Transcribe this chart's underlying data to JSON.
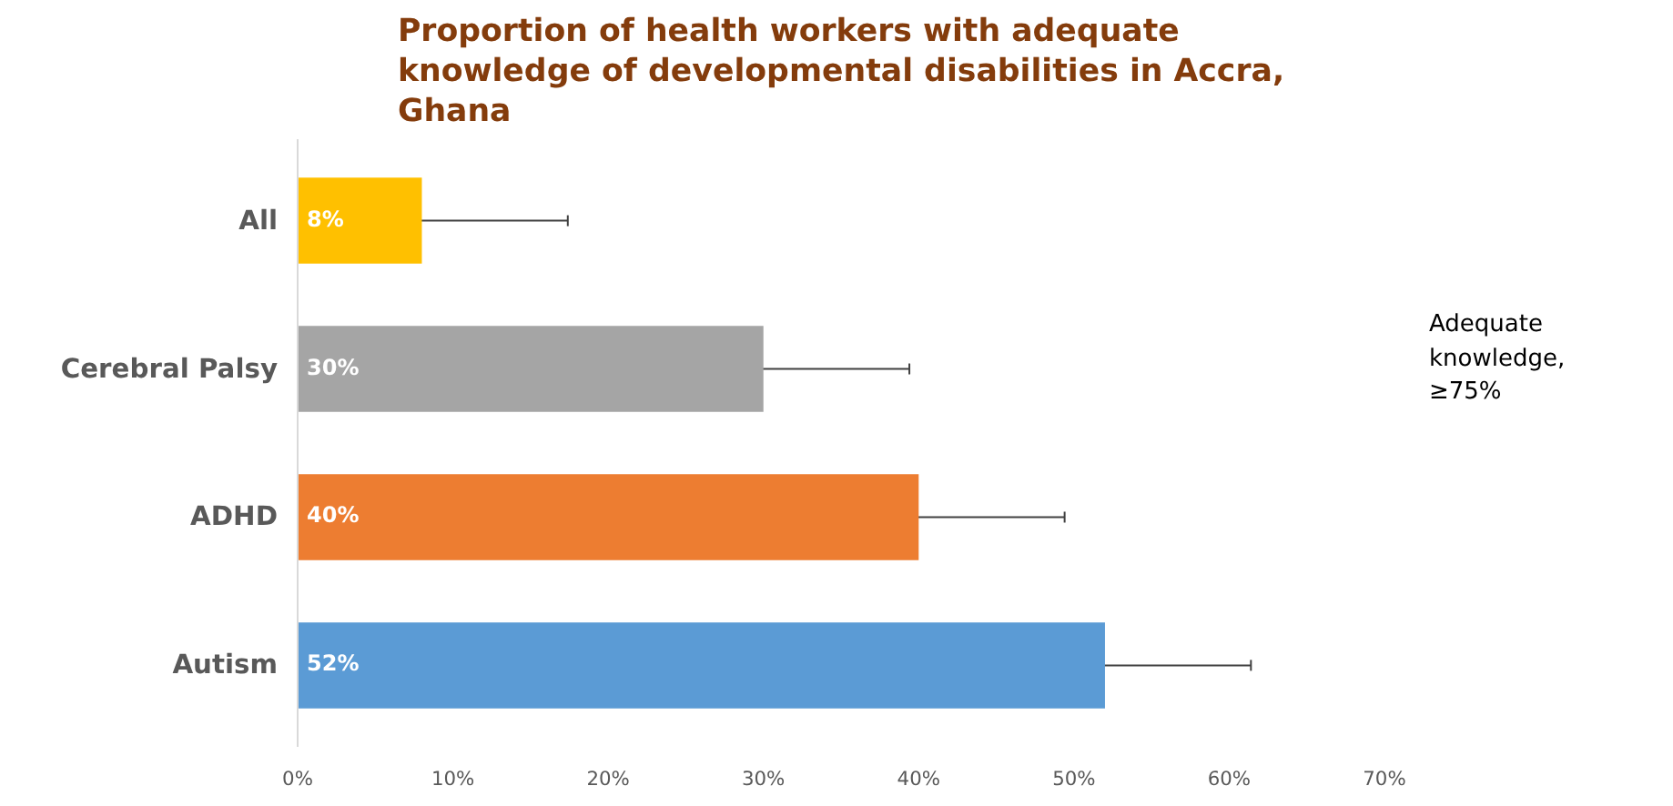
{
  "chart_data": {
    "type": "bar",
    "orientation": "horizontal",
    "title": "Proportion of health workers with adequate knowledge of developmental disabilities in Accra, Ghana",
    "categories": [
      "All",
      "Cerebral Palsy",
      "ADHD",
      "Autism"
    ],
    "values": [
      8,
      30,
      40,
      52
    ],
    "colors": [
      "#ffc000",
      "#a5a5a5",
      "#ed7d31",
      "#5b9bd5"
    ],
    "errors": [
      9.4,
      9.4,
      9.4,
      9.4
    ],
    "value_labels": [
      "8%",
      "30%",
      "40%",
      "52%"
    ],
    "xlim": [
      0,
      70
    ],
    "xticks": [
      {
        "value": 0,
        "label": "0%"
      },
      {
        "value": 10,
        "label": "10%"
      },
      {
        "value": 20,
        "label": "20%"
      },
      {
        "value": 30,
        "label": "30%"
      },
      {
        "value": 40,
        "label": "40%"
      },
      {
        "value": 50,
        "label": "50%"
      },
      {
        "value": 60,
        "label": "60%"
      },
      {
        "value": 70,
        "label": "70%"
      }
    ],
    "annotations": [
      "Adequate knowledge, ≥75%"
    ],
    "grid": false
  }
}
